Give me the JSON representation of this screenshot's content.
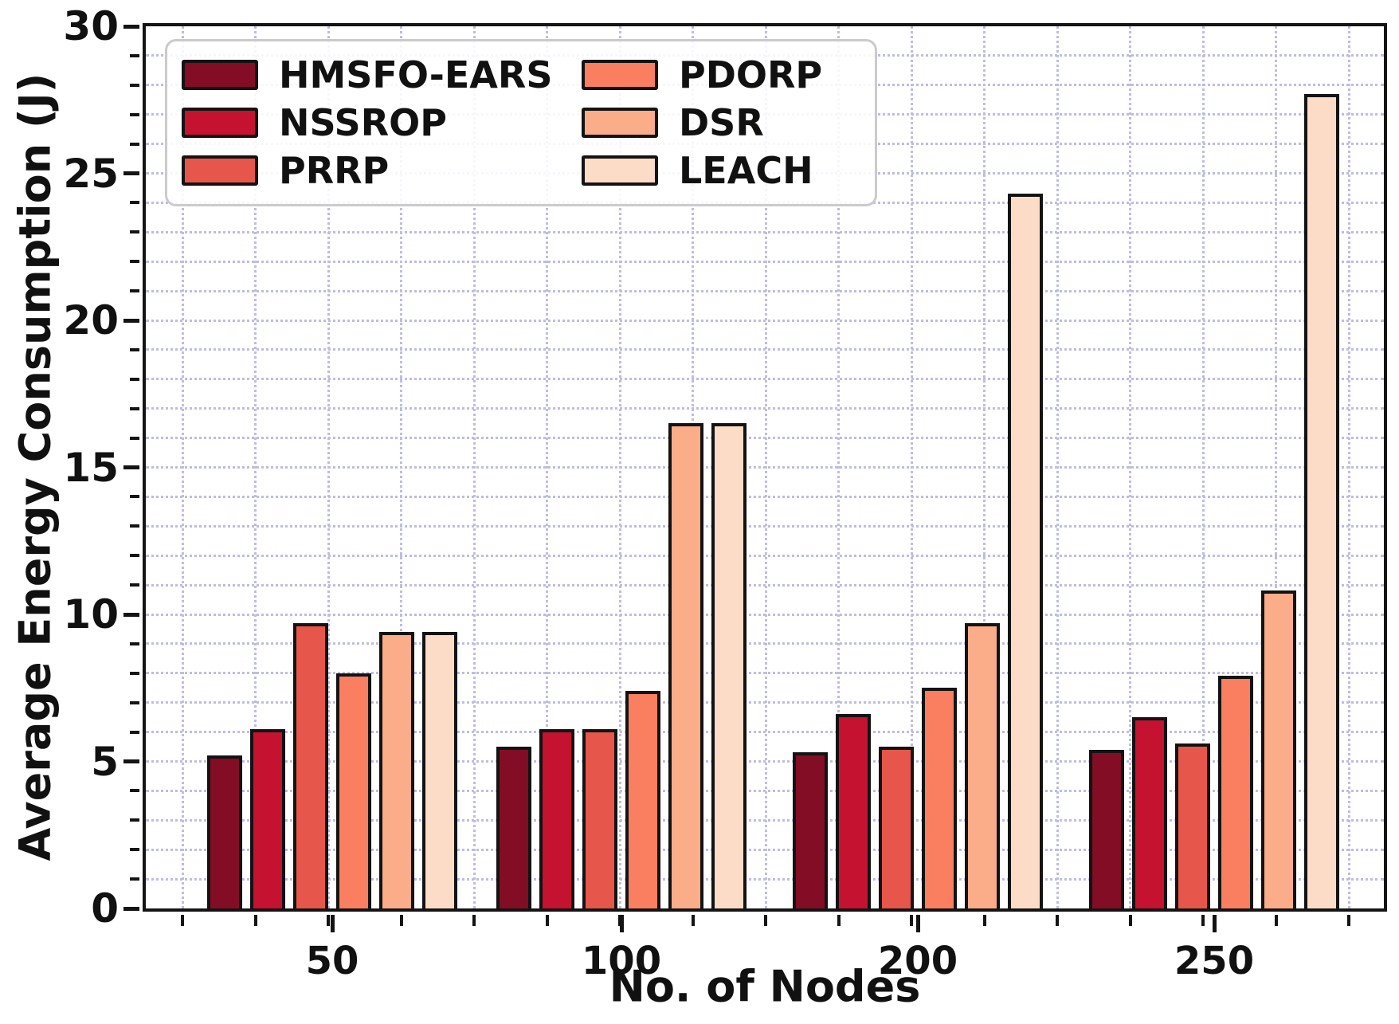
{
  "chart_data": {
    "type": "bar",
    "title": "",
    "xlabel": "No. of Nodes",
    "ylabel": "Average Energy Consumption (J)",
    "categories": [
      "50",
      "100",
      "200",
      "250"
    ],
    "series": [
      {
        "name": "HMSFO-EARS",
        "color": "#830d24",
        "values": [
          5.2,
          5.5,
          5.3,
          5.4
        ]
      },
      {
        "name": "NSSROP",
        "color": "#c51230",
        "values": [
          6.1,
          6.1,
          6.6,
          6.5
        ]
      },
      {
        "name": "PRRP",
        "color": "#e7564a",
        "values": [
          9.7,
          6.1,
          5.5,
          5.6
        ]
      },
      {
        "name": "PDORP",
        "color": "#f97f60",
        "values": [
          8.0,
          7.4,
          7.5,
          7.9
        ]
      },
      {
        "name": "DSR",
        "color": "#fbad89",
        "values": [
          9.4,
          16.5,
          9.7,
          10.8
        ]
      },
      {
        "name": "LEACH",
        "color": "#fcdcc6",
        "values": [
          9.4,
          16.5,
          24.3,
          27.7
        ]
      }
    ],
    "ylim": [
      0,
      30
    ],
    "ytick_step": 5,
    "ytick_labels": [
      "0",
      "5",
      "10",
      "15",
      "20",
      "25",
      "30"
    ],
    "grid": "dotted lavender minor grid, horizontal every 1 unit and vertical minor lines",
    "legend_position": "upper left, 2 columns",
    "bar_edge_color": "#131313"
  }
}
